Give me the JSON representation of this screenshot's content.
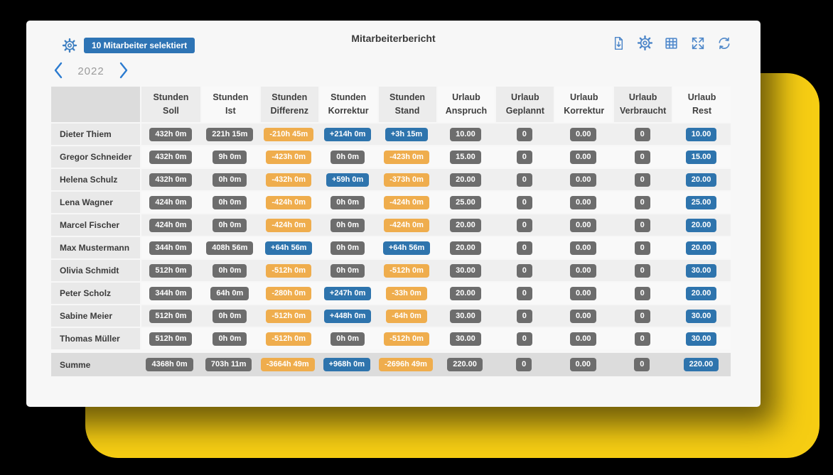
{
  "window": {
    "title": "Mitarbeiterbericht",
    "selection_badge": "10 Mitarbeiter selektiert",
    "year": "2022"
  },
  "toolbar": {
    "icons": [
      "export",
      "settings",
      "table",
      "fullscreen",
      "refresh"
    ]
  },
  "colors": {
    "background": "#000000",
    "yellow_shape": "#f6cd13",
    "card": "#f7f7f7",
    "accent_blue": "#2e74b5",
    "icon_blue": "#4e87c9",
    "chevron_blue": "#2b7bd0",
    "badge_gray": "#6d6d6d",
    "badge_orange": "#efad4d",
    "badge_blue": "#2e74ad",
    "summary_row": "#dcdcdc"
  },
  "table": {
    "columns": [
      {
        "key": "stunden-soll",
        "line1": "Stunden",
        "line2": "Soll"
      },
      {
        "key": "stunden-ist",
        "line1": "Stunden",
        "line2": "Ist"
      },
      {
        "key": "stunden-differenz",
        "line1": "Stunden",
        "line2": "Differenz"
      },
      {
        "key": "stunden-korrektur",
        "line1": "Stunden",
        "line2": "Korrektur"
      },
      {
        "key": "stunden-stand",
        "line1": "Stunden",
        "line2": "Stand"
      },
      {
        "key": "urlaub-anspruch",
        "line1": "Urlaub",
        "line2": "Anspruch"
      },
      {
        "key": "urlaub-geplannt",
        "line1": "Urlaub",
        "line2": "Geplannt"
      },
      {
        "key": "urlaub-korrektur",
        "line1": "Urlaub",
        "line2": "Korrektur"
      },
      {
        "key": "urlaub-verbraucht",
        "line1": "Urlaub",
        "line2": "Verbraucht"
      },
      {
        "key": "urlaub-rest",
        "line1": "Urlaub",
        "line2": "Rest"
      }
    ],
    "rows": [
      {
        "name": "Dieter Thiem",
        "cells": [
          {
            "t": "432h 0m",
            "v": "gray"
          },
          {
            "t": "221h 15m",
            "v": "gray"
          },
          {
            "t": "-210h 45m",
            "v": "orange"
          },
          {
            "t": "+214h 0m",
            "v": "blue"
          },
          {
            "t": "+3h 15m",
            "v": "blue"
          },
          {
            "t": "10.00",
            "v": "gray"
          },
          {
            "t": "0",
            "v": "gray"
          },
          {
            "t": "0.00",
            "v": "gray"
          },
          {
            "t": "0",
            "v": "gray"
          },
          {
            "t": "10.00",
            "v": "blue"
          }
        ]
      },
      {
        "name": "Gregor Schneider",
        "cells": [
          {
            "t": "432h 0m",
            "v": "gray"
          },
          {
            "t": "9h 0m",
            "v": "gray"
          },
          {
            "t": "-423h 0m",
            "v": "orange"
          },
          {
            "t": "0h 0m",
            "v": "gray"
          },
          {
            "t": "-423h 0m",
            "v": "orange"
          },
          {
            "t": "15.00",
            "v": "gray"
          },
          {
            "t": "0",
            "v": "gray"
          },
          {
            "t": "0.00",
            "v": "gray"
          },
          {
            "t": "0",
            "v": "gray"
          },
          {
            "t": "15.00",
            "v": "blue"
          }
        ]
      },
      {
        "name": "Helena Schulz",
        "cells": [
          {
            "t": "432h 0m",
            "v": "gray"
          },
          {
            "t": "0h 0m",
            "v": "gray"
          },
          {
            "t": "-432h 0m",
            "v": "orange"
          },
          {
            "t": "+59h 0m",
            "v": "blue"
          },
          {
            "t": "-373h 0m",
            "v": "orange"
          },
          {
            "t": "20.00",
            "v": "gray"
          },
          {
            "t": "0",
            "v": "gray"
          },
          {
            "t": "0.00",
            "v": "gray"
          },
          {
            "t": "0",
            "v": "gray"
          },
          {
            "t": "20.00",
            "v": "blue"
          }
        ]
      },
      {
        "name": "Lena Wagner",
        "cells": [
          {
            "t": "424h 0m",
            "v": "gray"
          },
          {
            "t": "0h 0m",
            "v": "gray"
          },
          {
            "t": "-424h 0m",
            "v": "orange"
          },
          {
            "t": "0h 0m",
            "v": "gray"
          },
          {
            "t": "-424h 0m",
            "v": "orange"
          },
          {
            "t": "25.00",
            "v": "gray"
          },
          {
            "t": "0",
            "v": "gray"
          },
          {
            "t": "0.00",
            "v": "gray"
          },
          {
            "t": "0",
            "v": "gray"
          },
          {
            "t": "25.00",
            "v": "blue"
          }
        ]
      },
      {
        "name": "Marcel Fischer",
        "cells": [
          {
            "t": "424h 0m",
            "v": "gray"
          },
          {
            "t": "0h 0m",
            "v": "gray"
          },
          {
            "t": "-424h 0m",
            "v": "orange"
          },
          {
            "t": "0h 0m",
            "v": "gray"
          },
          {
            "t": "-424h 0m",
            "v": "orange"
          },
          {
            "t": "20.00",
            "v": "gray"
          },
          {
            "t": "0",
            "v": "gray"
          },
          {
            "t": "0.00",
            "v": "gray"
          },
          {
            "t": "0",
            "v": "gray"
          },
          {
            "t": "20.00",
            "v": "blue"
          }
        ]
      },
      {
        "name": "Max Mustermann",
        "cells": [
          {
            "t": "344h 0m",
            "v": "gray"
          },
          {
            "t": "408h 56m",
            "v": "gray"
          },
          {
            "t": "+64h 56m",
            "v": "blue"
          },
          {
            "t": "0h 0m",
            "v": "gray"
          },
          {
            "t": "+64h 56m",
            "v": "blue"
          },
          {
            "t": "20.00",
            "v": "gray"
          },
          {
            "t": "0",
            "v": "gray"
          },
          {
            "t": "0.00",
            "v": "gray"
          },
          {
            "t": "0",
            "v": "gray"
          },
          {
            "t": "20.00",
            "v": "blue"
          }
        ]
      },
      {
        "name": "Olivia Schmidt",
        "cells": [
          {
            "t": "512h 0m",
            "v": "gray"
          },
          {
            "t": "0h 0m",
            "v": "gray"
          },
          {
            "t": "-512h 0m",
            "v": "orange"
          },
          {
            "t": "0h 0m",
            "v": "gray"
          },
          {
            "t": "-512h 0m",
            "v": "orange"
          },
          {
            "t": "30.00",
            "v": "gray"
          },
          {
            "t": "0",
            "v": "gray"
          },
          {
            "t": "0.00",
            "v": "gray"
          },
          {
            "t": "0",
            "v": "gray"
          },
          {
            "t": "30.00",
            "v": "blue"
          }
        ]
      },
      {
        "name": "Peter Scholz",
        "cells": [
          {
            "t": "344h 0m",
            "v": "gray"
          },
          {
            "t": "64h 0m",
            "v": "gray"
          },
          {
            "t": "-280h 0m",
            "v": "orange"
          },
          {
            "t": "+247h 0m",
            "v": "blue"
          },
          {
            "t": "-33h 0m",
            "v": "orange"
          },
          {
            "t": "20.00",
            "v": "gray"
          },
          {
            "t": "0",
            "v": "gray"
          },
          {
            "t": "0.00",
            "v": "gray"
          },
          {
            "t": "0",
            "v": "gray"
          },
          {
            "t": "20.00",
            "v": "blue"
          }
        ]
      },
      {
        "name": "Sabine Meier",
        "cells": [
          {
            "t": "512h 0m",
            "v": "gray"
          },
          {
            "t": "0h 0m",
            "v": "gray"
          },
          {
            "t": "-512h 0m",
            "v": "orange"
          },
          {
            "t": "+448h 0m",
            "v": "blue"
          },
          {
            "t": "-64h 0m",
            "v": "orange"
          },
          {
            "t": "30.00",
            "v": "gray"
          },
          {
            "t": "0",
            "v": "gray"
          },
          {
            "t": "0.00",
            "v": "gray"
          },
          {
            "t": "0",
            "v": "gray"
          },
          {
            "t": "30.00",
            "v": "blue"
          }
        ]
      },
      {
        "name": "Thomas Müller",
        "cells": [
          {
            "t": "512h 0m",
            "v": "gray"
          },
          {
            "t": "0h 0m",
            "v": "gray"
          },
          {
            "t": "-512h 0m",
            "v": "orange"
          },
          {
            "t": "0h 0m",
            "v": "gray"
          },
          {
            "t": "-512h 0m",
            "v": "orange"
          },
          {
            "t": "30.00",
            "v": "gray"
          },
          {
            "t": "0",
            "v": "gray"
          },
          {
            "t": "0.00",
            "v": "gray"
          },
          {
            "t": "0",
            "v": "gray"
          },
          {
            "t": "30.00",
            "v": "blue"
          }
        ]
      }
    ],
    "summary": {
      "name": "Summe",
      "cells": [
        {
          "t": "4368h 0m",
          "v": "gray"
        },
        {
          "t": "703h 11m",
          "v": "gray"
        },
        {
          "t": "-3664h 49m",
          "v": "orange"
        },
        {
          "t": "+968h 0m",
          "v": "blue"
        },
        {
          "t": "-2696h 49m",
          "v": "orange"
        },
        {
          "t": "220.00",
          "v": "gray"
        },
        {
          "t": "0",
          "v": "gray"
        },
        {
          "t": "0.00",
          "v": "gray"
        },
        {
          "t": "0",
          "v": "gray"
        },
        {
          "t": "220.00",
          "v": "blue"
        }
      ]
    }
  }
}
